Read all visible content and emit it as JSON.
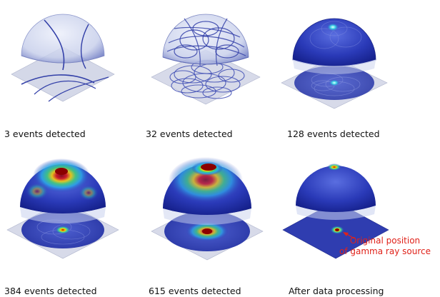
{
  "panels": [
    {
      "caption": "3 events detected",
      "stage": "sparse"
    },
    {
      "caption": "32 events detected",
      "stage": "rings"
    },
    {
      "caption": "128 events detected",
      "stage": "early-hotspot"
    },
    {
      "caption": "384 events detected",
      "stage": "heatmap"
    },
    {
      "caption": "615 events detected",
      "stage": "heatmap-strong"
    },
    {
      "caption": "After data processing",
      "stage": "processed"
    }
  ],
  "annotation": {
    "line1": "Original position",
    "line2": "of gamma ray source",
    "color": "#e0221a"
  },
  "colors": {
    "dome_light": "#c9d2ee",
    "dome_dark": "#1f2fa8",
    "plane": "#c6cbe0",
    "ring": "#3340a8",
    "hotspot_core": "#8b0000"
  }
}
